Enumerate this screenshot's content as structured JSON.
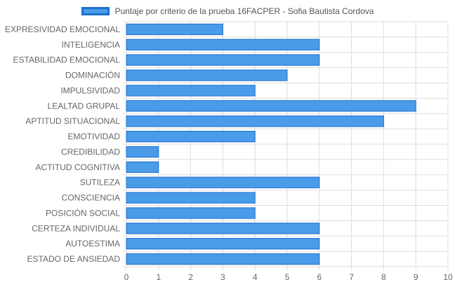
{
  "chart_data": {
    "type": "bar",
    "orientation": "horizontal",
    "legend": {
      "label": "Puntaje por criterio de la prueba 16FACPER - Sofia Bautista Cordova",
      "position": "top"
    },
    "categories": [
      "EXPRESIVIDAD EMOCIONAL",
      "INTELIGENCIA",
      "ESTABILIDAD EMOCIONAL",
      "DOMINACIÓN",
      "IMPULSIVIDAD",
      "LEALTAD GRUPAL",
      "APTITUD SITUACIONAL",
      "EMOTIVIDAD",
      "CREDIBILIDAD",
      "ACTITUD COGNITIVA",
      "SUTILEZA",
      "CONSCIENCIA",
      "POSICIÓN SOCIAL",
      "CERTEZA INDIVIDUAL",
      "AUTOESTIMA",
      "ESTADO DE ANSIEDAD"
    ],
    "series": [
      {
        "name": "Puntaje por criterio de la prueba 16FACPER - Sofia Bautista Cordova",
        "values": [
          3,
          6,
          6,
          5,
          4,
          9,
          8,
          4,
          1,
          1,
          6,
          4,
          4,
          6,
          6,
          6
        ]
      }
    ],
    "xlim": [
      0,
      10
    ],
    "xticks": [
      "0",
      "1",
      "2",
      "3",
      "4",
      "5",
      "6",
      "7",
      "8",
      "9",
      "10"
    ],
    "grid": true,
    "colors": {
      "bar_fill": "#4a9be8",
      "bar_border": "#1e6fd0",
      "grid": "#dddddd",
      "tick_text": "#666666"
    }
  }
}
